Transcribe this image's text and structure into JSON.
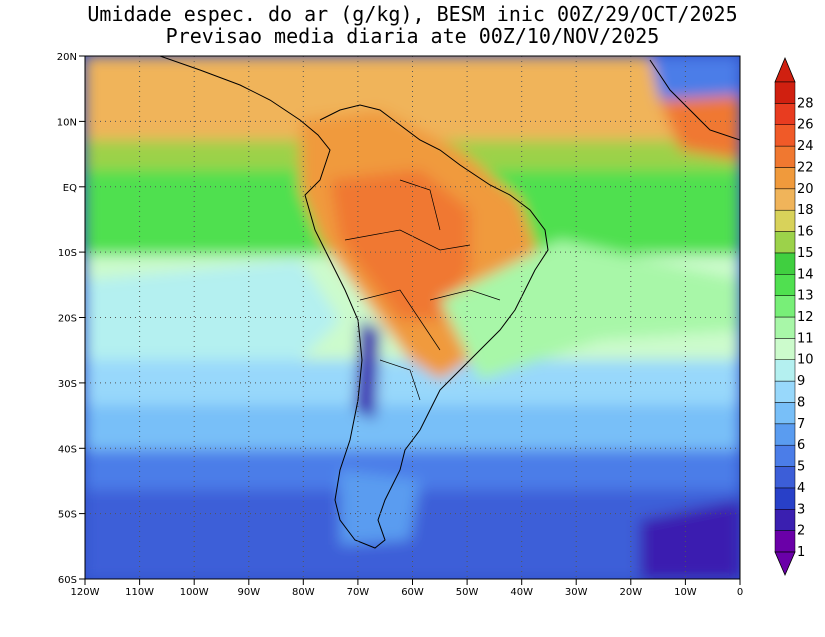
{
  "title_line1": "Umidade espec. do ar (g/kg), BESM inic 00Z/29/OCT/2025",
  "title_line2": "Previsao media diaria ate 00Z/10/NOV/2025",
  "lon_labels": [
    "120W",
    "110W",
    "100W",
    "90W",
    "80W",
    "70W",
    "60W",
    "50W",
    "40W",
    "30W",
    "20W",
    "10W",
    "0"
  ],
  "lat_labels": [
    "20N",
    "10N",
    "EQ",
    "10S",
    "20S",
    "30S",
    "40S",
    "50S",
    "60S"
  ],
  "colorbar": {
    "levels": [
      "1",
      "2",
      "3",
      "4",
      "5",
      "6",
      "7",
      "8",
      "9",
      "10",
      "11",
      "12",
      "13",
      "14",
      "15",
      "16",
      "18",
      "20",
      "22",
      "24",
      "26",
      "28"
    ],
    "colors": [
      "#6a00a8",
      "#3a1fb0",
      "#2840c8",
      "#3c5ed8",
      "#4b7de8",
      "#5a9cf0",
      "#78bff8",
      "#98d8fb",
      "#b4f0f0",
      "#ccfbcc",
      "#a8f7a8",
      "#78ef78",
      "#50e050",
      "#40cf40",
      "#9cd24a",
      "#d8d25a",
      "#f0b45a",
      "#f09a3c",
      "#f07830",
      "#f05a28",
      "#e83c20",
      "#d02010"
    ],
    "below_color": "#6a00a8",
    "above_color": "#d02010"
  }
}
